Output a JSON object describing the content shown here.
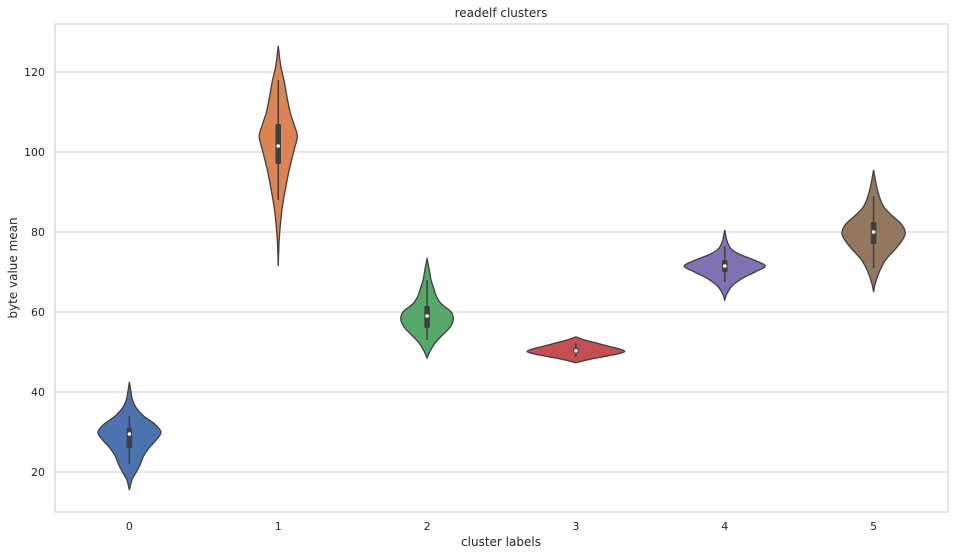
{
  "chart_data": {
    "type": "violin",
    "title": "readelf clusters",
    "xlabel": "cluster labels",
    "ylabel": "byte value mean",
    "categories": [
      "0",
      "1",
      "2",
      "3",
      "4",
      "5"
    ],
    "ylim": [
      10,
      132
    ],
    "yticks": [
      20,
      40,
      60,
      80,
      100,
      120
    ],
    "grid": "horizontal",
    "colors": [
      "#4c72b0",
      "#dd8452",
      "#55a868",
      "#c44e52",
      "#8172b3",
      "#937860"
    ],
    "series": [
      {
        "label": "0",
        "min": 15.5,
        "max": 42.5,
        "q1": 26,
        "median": 29.5,
        "q3": 31,
        "whisker_low": 22,
        "whisker_high": 34,
        "density": [
          [
            15.5,
            0.0
          ],
          [
            18,
            0.08
          ],
          [
            20,
            0.22
          ],
          [
            22,
            0.35
          ],
          [
            24,
            0.45
          ],
          [
            26,
            0.62
          ],
          [
            28,
            0.85
          ],
          [
            30,
            1.0
          ],
          [
            32,
            0.8
          ],
          [
            34,
            0.45
          ],
          [
            36,
            0.22
          ],
          [
            38,
            0.1
          ],
          [
            40,
            0.05
          ],
          [
            42.5,
            0.0
          ]
        ]
      },
      {
        "label": "1",
        "min": 71.5,
        "max": 126.5,
        "q1": 97,
        "median": 101.5,
        "q3": 107,
        "whisker_low": 88,
        "whisker_high": 118,
        "density": [
          [
            71.5,
            0.0
          ],
          [
            78,
            0.05
          ],
          [
            85,
            0.18
          ],
          [
            90,
            0.35
          ],
          [
            95,
            0.55
          ],
          [
            98,
            0.7
          ],
          [
            101,
            0.86
          ],
          [
            104,
            1.0
          ],
          [
            107,
            0.82
          ],
          [
            110,
            0.62
          ],
          [
            114,
            0.45
          ],
          [
            118,
            0.3
          ],
          [
            121,
            0.15
          ],
          [
            124,
            0.06
          ],
          [
            126.5,
            0.0
          ]
        ]
      },
      {
        "label": "2",
        "min": 48.5,
        "max": 73.5,
        "q1": 56,
        "median": 59,
        "q3": 61.5,
        "whisker_low": 53,
        "whisker_high": 68,
        "density": [
          [
            48.5,
            0.0
          ],
          [
            50,
            0.1
          ],
          [
            52,
            0.28
          ],
          [
            54,
            0.55
          ],
          [
            56,
            0.85
          ],
          [
            58,
            1.0
          ],
          [
            60,
            0.92
          ],
          [
            62,
            0.55
          ],
          [
            64,
            0.35
          ],
          [
            66,
            0.25
          ],
          [
            68,
            0.15
          ],
          [
            70,
            0.1
          ],
          [
            72,
            0.04
          ],
          [
            73.5,
            0.0
          ]
        ]
      },
      {
        "label": "3",
        "min": 47.3,
        "max": 53.8,
        "q1": 49.7,
        "median": 50.3,
        "q3": 51,
        "whisker_low": 48.8,
        "whisker_high": 52.2,
        "density": [
          [
            47.3,
            0.0
          ],
          [
            48,
            0.22
          ],
          [
            48.8,
            0.55
          ],
          [
            49.5,
            0.85
          ],
          [
            50.1,
            1.0
          ],
          [
            50.8,
            0.88
          ],
          [
            51.5,
            0.65
          ],
          [
            52.3,
            0.4
          ],
          [
            53.0,
            0.18
          ],
          [
            53.8,
            0.0
          ]
        ]
      },
      {
        "label": "4",
        "min": 63,
        "max": 80.5,
        "q1": 70,
        "median": 71.5,
        "q3": 73,
        "whisker_low": 67.5,
        "whisker_high": 76.5,
        "density": [
          [
            63,
            0.0
          ],
          [
            64.5,
            0.05
          ],
          [
            66.5,
            0.18
          ],
          [
            68.5,
            0.45
          ],
          [
            70,
            0.75
          ],
          [
            71.5,
            1.0
          ],
          [
            73,
            0.72
          ],
          [
            74.5,
            0.35
          ],
          [
            76,
            0.14
          ],
          [
            78,
            0.05
          ],
          [
            80.5,
            0.0
          ]
        ]
      },
      {
        "label": "5",
        "min": 65,
        "max": 95.5,
        "q1": 77,
        "median": 80,
        "q3": 82.5,
        "whisker_low": 71,
        "whisker_high": 89,
        "density": [
          [
            65,
            0.0
          ],
          [
            67,
            0.05
          ],
          [
            70,
            0.18
          ],
          [
            73,
            0.38
          ],
          [
            76,
            0.72
          ],
          [
            78.5,
            0.95
          ],
          [
            80,
            1.0
          ],
          [
            82,
            0.88
          ],
          [
            84,
            0.6
          ],
          [
            86,
            0.35
          ],
          [
            88,
            0.22
          ],
          [
            90,
            0.14
          ],
          [
            92,
            0.08
          ],
          [
            95.5,
            0.0
          ]
        ]
      }
    ]
  },
  "widths": [
    0.53,
    0.32,
    0.44,
    0.82,
    0.68,
    0.53
  ]
}
